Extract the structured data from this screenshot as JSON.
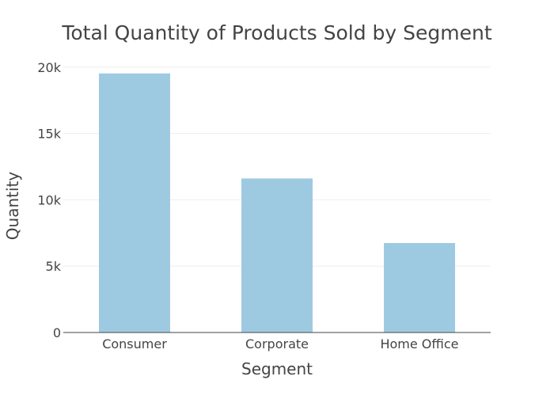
{
  "chart_data": {
    "type": "bar",
    "title": "Total Quantity of Products Sold by Segment",
    "xlabel": "Segment",
    "ylabel": "Quantity",
    "categories": [
      "Consumer",
      "Corporate",
      "Home Office"
    ],
    "values": [
      19521,
      11608,
      6744
    ],
    "ylim": [
      0,
      21000
    ],
    "yticks": [
      0,
      5000,
      10000,
      15000,
      20000
    ],
    "ytick_labels": [
      "0",
      "5k",
      "10k",
      "15k",
      "20k"
    ],
    "grid": true,
    "legend": "none",
    "colors": {
      "bar": "#9ecae1",
      "text": "#444444",
      "grid": "#eeeeee",
      "axis": "#444444"
    }
  }
}
